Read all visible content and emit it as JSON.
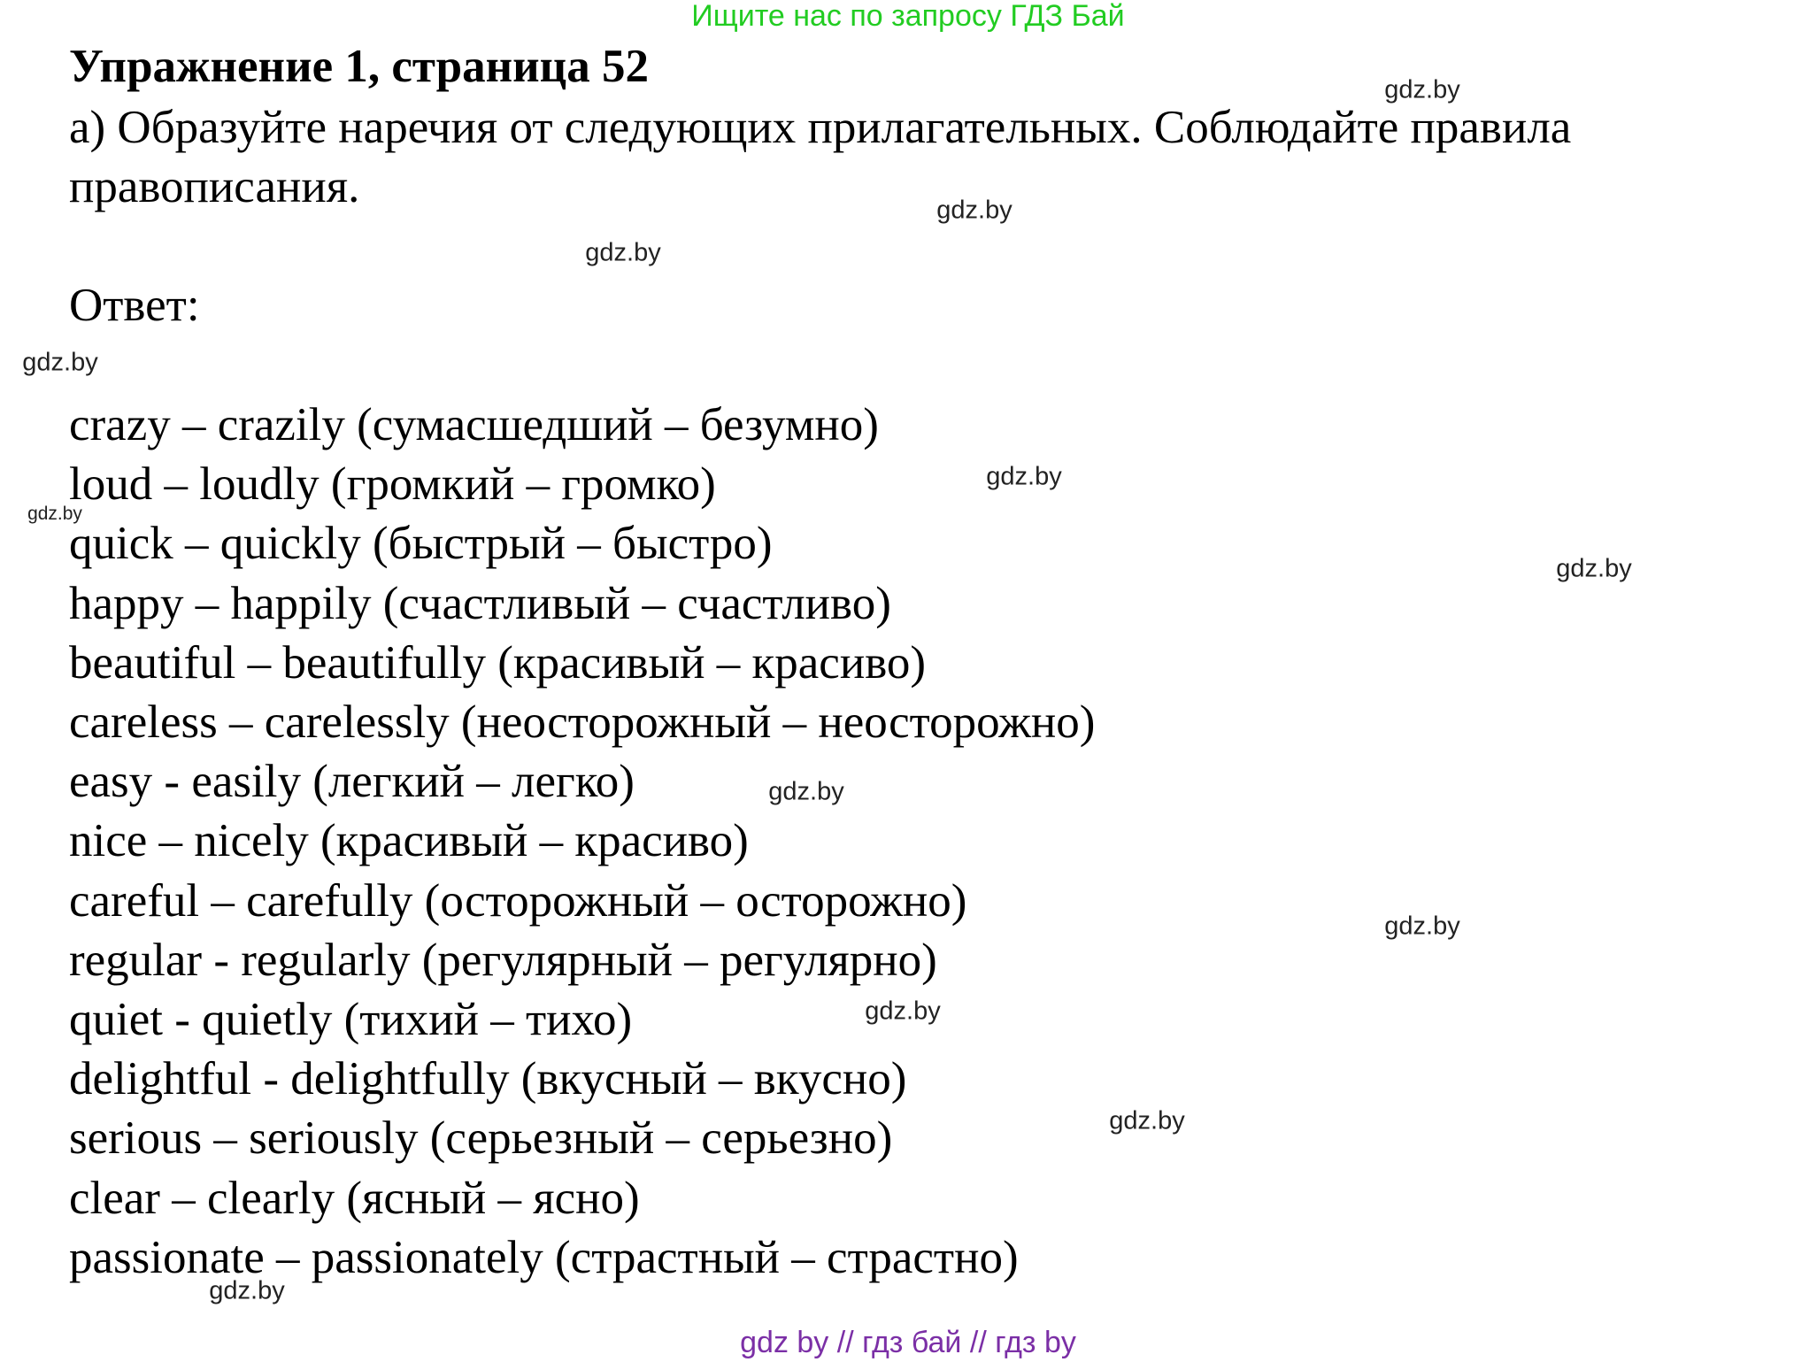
{
  "header_link": "Ищите нас по запросу ГДЗ Бай",
  "title": "Упражнение 1, страница 52",
  "task_line1": "а) Образуйте наречия от следующих прилагательных. Соблюдайте правила",
  "task_line2": "правописания.",
  "answer_label": "Ответ:",
  "answers": [
    "crazy – crazily (сумасшедший – безумно)",
    "loud – loudly (громкий – громко)",
    "quick – quickly (быстрый – быстро)",
    "happy – happily (счастливый – счастливо)",
    "beautiful – beautifully (красивый – красиво)",
    "careless – carelessly (неосторожный – неосторожно)",
    "easy - easily (легкий – легко)",
    "nice – nicely (красивый – красиво)",
    "careful – carefully (осторожный – осторожно)",
    "regular - regularly (регулярный – регулярно)",
    "quiet - quietly (тихий – тихо)",
    "delightful - delightfully (вкусный – вкусно)",
    "serious – seriously (серьезный – серьезно)",
    "clear – clearly (ясный – ясно)",
    "passionate – passionately (страстный – страстно)"
  ],
  "watermark": "gdz.by",
  "footer_links": "gdz by  //  гдз бай  //  гдз by",
  "colors": {
    "header_link": "#22cc22",
    "footer_links": "#7b2fa6"
  }
}
